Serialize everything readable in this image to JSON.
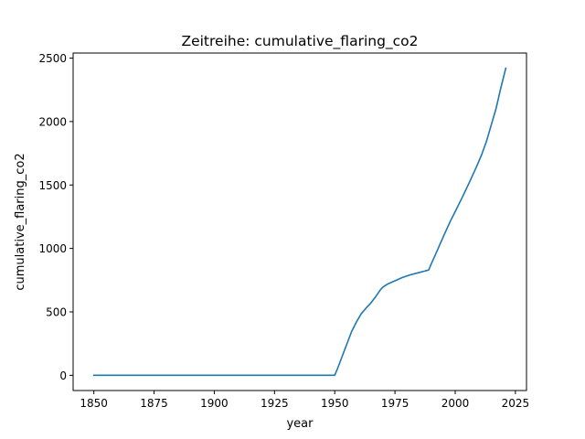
{
  "chart_data": {
    "type": "line",
    "title": "Zeitreihe: cumulative_flaring_co2",
    "xlabel": "year",
    "ylabel": "cumulative_flaring_co2",
    "xlim": [
      1841.4,
      2029.6
    ],
    "ylim": [
      -120,
      2540
    ],
    "xticks": [
      1850,
      1875,
      1900,
      1925,
      1950,
      1975,
      2000,
      2025
    ],
    "yticks": [
      0,
      500,
      1000,
      1500,
      2000,
      2500
    ],
    "grid": false,
    "series": [
      {
        "color": "#1f77b4",
        "x": [
          1850,
          1900,
          1949,
          1950,
          1951,
          1953,
          1955,
          1957,
          1959,
          1961,
          1963,
          1965,
          1967,
          1969,
          1970,
          1972,
          1975,
          1978,
          1981,
          1984,
          1987,
          1989,
          1990,
          1992,
          1995,
          1998,
          2000,
          2003,
          2006,
          2009,
          2011,
          2013,
          2015,
          2017,
          2019,
          2021
        ],
        "y": [
          0,
          0,
          0,
          0,
          45,
          145,
          245,
          345,
          420,
          485,
          530,
          570,
          620,
          675,
          695,
          720,
          745,
          770,
          790,
          805,
          820,
          830,
          875,
          960,
          1090,
          1215,
          1290,
          1405,
          1525,
          1650,
          1740,
          1845,
          1975,
          2105,
          2270,
          2420
        ]
      }
    ]
  }
}
